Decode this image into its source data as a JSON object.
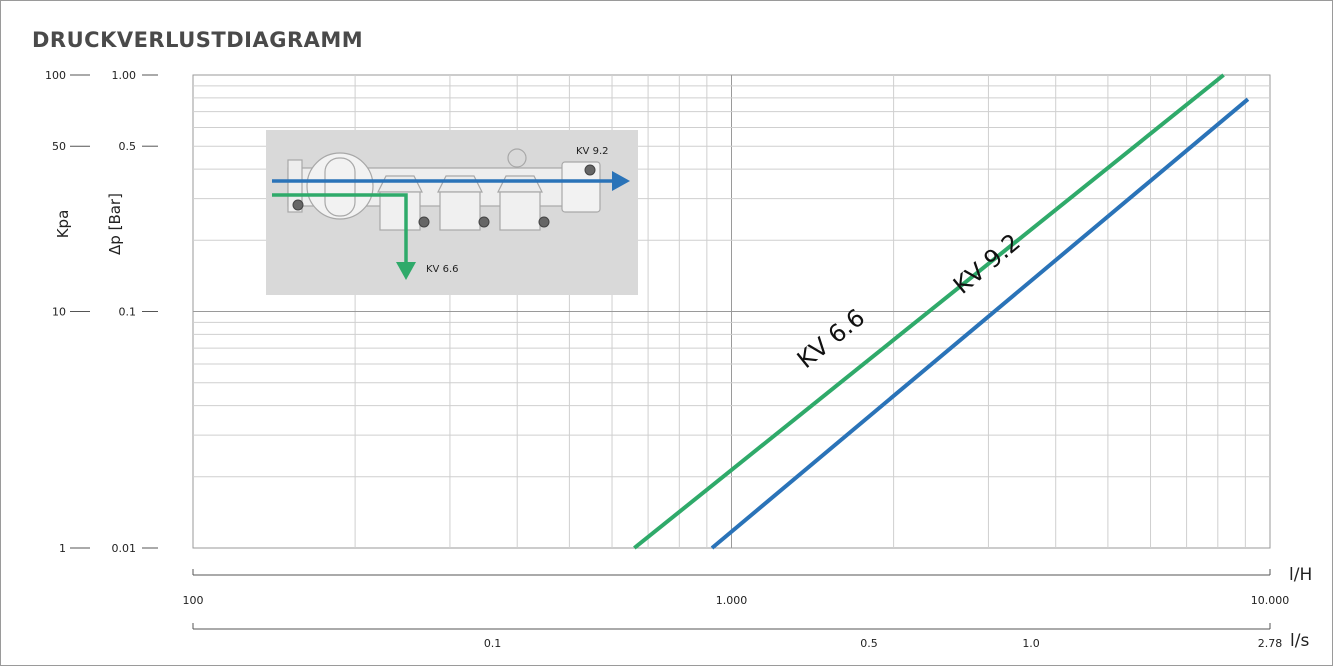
{
  "title": "DRUCKVERLUSTDIAGRAMM",
  "colors": {
    "kv66": "#2faa6a",
    "kv92": "#2a73b8",
    "grid": "#cfcfcf",
    "grid_major": "#9a9a9a",
    "inset_bg": "#d9d9d9"
  },
  "chart_data": {
    "type": "line",
    "title": "DRUCKVERLUSTDIAGRAMM",
    "xscale": "log",
    "yscale": "log",
    "x_unit": "l/H",
    "x2_unit": "l/s",
    "ylabel": "Δp [Bar]",
    "y2label": "Kpa",
    "xlim": [
      100,
      10000
    ],
    "ylim": [
      0.01,
      1.0
    ],
    "x_ticks": [
      {
        "value": 100,
        "label": "100"
      },
      {
        "value": 1000,
        "label": "1.000"
      },
      {
        "value": 10000,
        "label": "10.000"
      }
    ],
    "x2_ticks": [
      {
        "value": 360,
        "label": "0.1"
      },
      {
        "value": 1800,
        "label": "0.5"
      },
      {
        "value": 3600,
        "label": "1.0"
      },
      {
        "value": 10000,
        "label": "2.78"
      }
    ],
    "y_ticks": [
      {
        "value": 1.0,
        "label": "1.00",
        "kpa": "100"
      },
      {
        "value": 0.5,
        "label": "0.5",
        "kpa": "50"
      },
      {
        "value": 0.1,
        "label": "0.1",
        "kpa": "10"
      },
      {
        "value": 0.01,
        "label": "0.01",
        "kpa": "1"
      }
    ],
    "grid": true,
    "series": [
      {
        "name": "KV 6.6",
        "color": "#2faa6a",
        "x": [
          660,
          8200
        ],
        "y": [
          0.01,
          1.0
        ]
      },
      {
        "name": "KV 9.2",
        "color": "#2a73b8",
        "x": [
          920,
          9100
        ],
        "y": [
          0.01,
          0.79
        ]
      }
    ]
  },
  "inset": {
    "label_through": "KV 9.2",
    "label_branch": "KV 6.6"
  }
}
